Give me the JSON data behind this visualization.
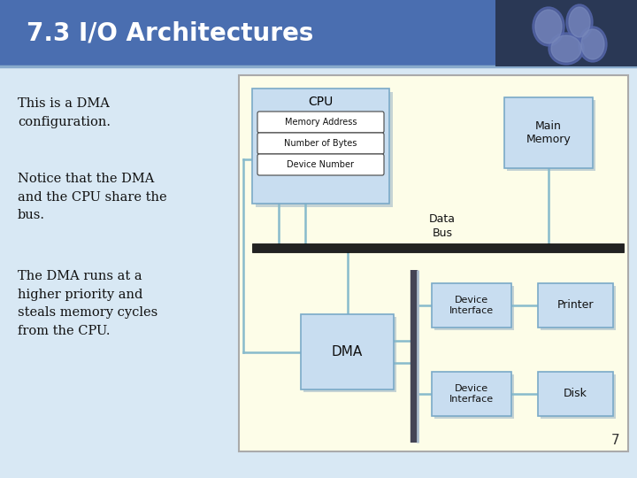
{
  "title": "7.3 I/O Architectures",
  "title_color": "#ffffff",
  "header_bg": "#4a6eb0",
  "slide_bg": "#d8e8f4",
  "diagram_bg": "#fdfde8",
  "text_lines": [
    "This is a DMA\nconfiguration.",
    "Notice that the DMA\nand the CPU share the\nbus.",
    "The DMA runs at a\nhigher priority and\nsteals memory cycles\nfrom the CPU."
  ],
  "box_fill": "#c8ddf0",
  "box_edge": "#7aaac8",
  "bus_color": "#222222",
  "connector_color": "#88bbcc",
  "sub_fill": "#ffffff",
  "sub_edge": "#444444"
}
